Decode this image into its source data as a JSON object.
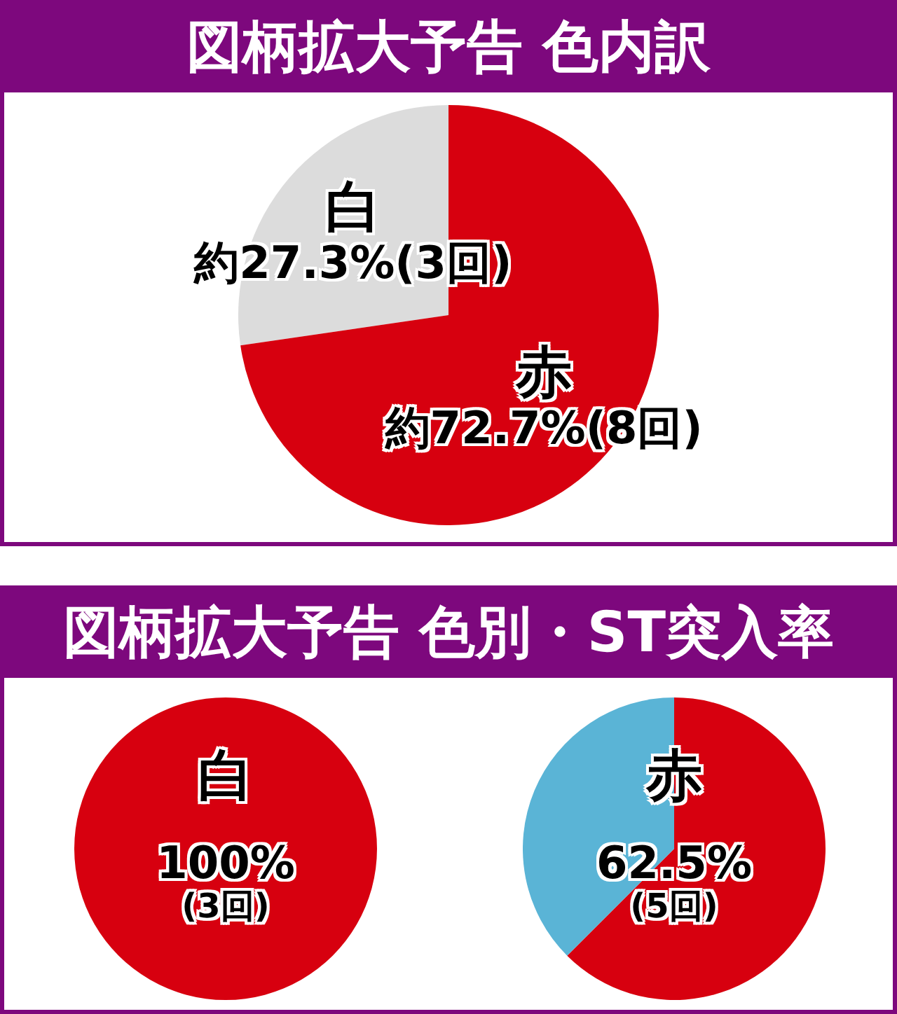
{
  "chart_data": [
    {
      "type": "pie",
      "title": "図柄拡大予告 色内訳",
      "categories": [
        "白",
        "赤"
      ],
      "values": [
        27.3,
        72.7
      ],
      "colors": [
        "#dcdcdc",
        "#d7000f"
      ],
      "value_labels": [
        "約27.3%(3回)",
        "約72.7%(8回)"
      ]
    },
    {
      "type": "pie",
      "title": "図柄拡大予告 色別・ST突入率",
      "subtitle": "白",
      "categories": [
        null
      ],
      "values": [
        100
      ],
      "colors": [
        "#d7000f"
      ],
      "value_labels": [
        "100%(3回)"
      ]
    },
    {
      "type": "pie",
      "subtitle": "赤",
      "categories": [
        null,
        null
      ],
      "values": [
        62.5,
        37.5
      ],
      "colors": [
        "#d7000f",
        "#5ab4d6"
      ],
      "value_labels": [
        "62.5%(5回)",
        null
      ]
    }
  ]
}
